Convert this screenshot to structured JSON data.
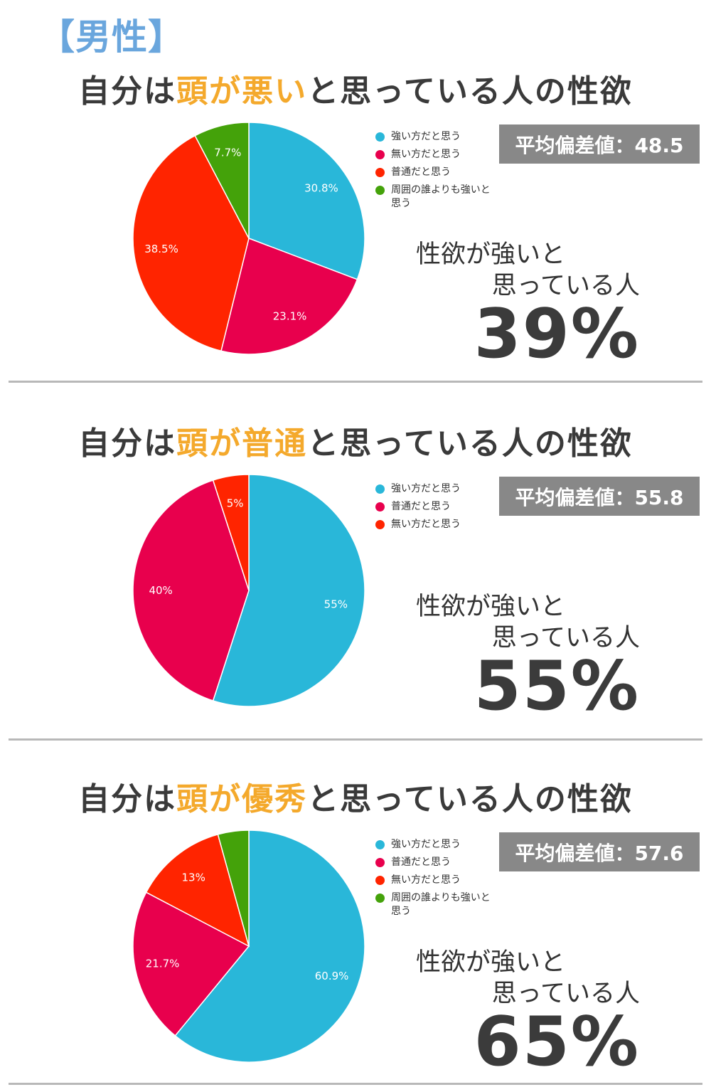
{
  "header": "【男性】",
  "colors": {
    "blue": "#29b7d9",
    "crimson": "#e8004d",
    "red": "#ff2400",
    "green": "#44a20a",
    "highlight": "#f4a92c",
    "badge": "#888888"
  },
  "sections": [
    {
      "title_pre": "自分は",
      "title_hl": "頭が悪い",
      "title_post": "と思っている人の性欲",
      "avg_label": "平均偏差値：48.5",
      "caption_line1": "性欲が強いと",
      "caption_line2": "思っている人",
      "big_value": "39%",
      "legend": [
        {
          "label": "強い方だと思う",
          "color": "#29b7d9"
        },
        {
          "label": "無い方だと思う",
          "color": "#e8004d"
        },
        {
          "label": "普通だと思う",
          "color": "#ff2400"
        },
        {
          "label": "周囲の誰よりも強いと思う",
          "color": "#44a20a"
        }
      ]
    },
    {
      "title_pre": "自分は",
      "title_hl": "頭が普通",
      "title_post": "と思っている人の性欲",
      "avg_label": "平均偏差値：55.8",
      "caption_line1": "性欲が強いと",
      "caption_line2": "思っている人",
      "big_value": "55%",
      "legend": [
        {
          "label": "強い方だと思う",
          "color": "#29b7d9"
        },
        {
          "label": "普通だと思う",
          "color": "#e8004d"
        },
        {
          "label": "無い方だと思う",
          "color": "#ff2400"
        }
      ]
    },
    {
      "title_pre": "自分は",
      "title_hl": "頭が優秀",
      "title_post": "と思っている人の性欲",
      "avg_label": "平均偏差値：57.6",
      "caption_line1": "性欲が強いと",
      "caption_line2": "思っている人",
      "big_value": "65%",
      "legend": [
        {
          "label": "強い方だと思う",
          "color": "#29b7d9"
        },
        {
          "label": "普通だと思う",
          "color": "#e8004d"
        },
        {
          "label": "無い方だと思う",
          "color": "#ff2400"
        },
        {
          "label": "周囲の誰よりも強いと思う",
          "color": "#44a20a"
        }
      ]
    }
  ],
  "chart_data": [
    {
      "type": "pie",
      "slices": [
        {
          "label": "強い方だと思う",
          "value": 30.8,
          "display": "30.8%",
          "color": "#29b7d9"
        },
        {
          "label": "無い方だと思う",
          "value": 23.1,
          "display": "23.1%",
          "color": "#e8004d"
        },
        {
          "label": "普通だと思う",
          "value": 38.5,
          "display": "38.5%",
          "color": "#ff2400"
        },
        {
          "label": "周囲の誰よりも強いと思う",
          "value": 7.7,
          "display": "7.7%",
          "color": "#44a20a"
        }
      ]
    },
    {
      "type": "pie",
      "slices": [
        {
          "label": "強い方だと思う",
          "value": 55,
          "display": "55%",
          "color": "#29b7d9"
        },
        {
          "label": "普通だと思う",
          "value": 40,
          "display": "40%",
          "color": "#e8004d"
        },
        {
          "label": "無い方だと思う",
          "value": 5,
          "display": "5%",
          "color": "#ff2400"
        }
      ]
    },
    {
      "type": "pie",
      "slices": [
        {
          "label": "強い方だと思う",
          "value": 60.9,
          "display": "60.9%",
          "color": "#29b7d9"
        },
        {
          "label": "普通だと思う",
          "value": 21.7,
          "display": "21.7%",
          "color": "#e8004d"
        },
        {
          "label": "無い方だと思う",
          "value": 13,
          "display": "13%",
          "color": "#ff2400"
        },
        {
          "label": "周囲の誰よりも強いと思う",
          "value": 4.3,
          "display": "",
          "color": "#44a20a"
        }
      ]
    }
  ]
}
